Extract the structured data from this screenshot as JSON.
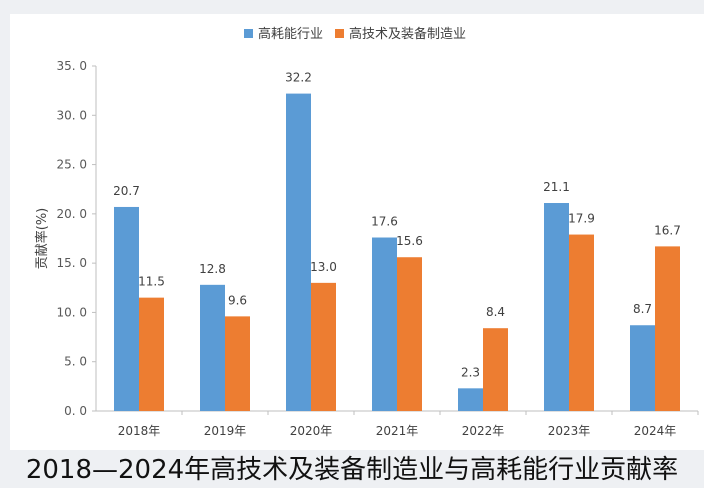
{
  "caption": "2018—2024年高技术及装备制造业与高耗能行业贡献率",
  "chart_data": {
    "type": "bar",
    "categories": [
      "2018年",
      "2019年",
      "2020年",
      "2021年",
      "2022年",
      "2023年",
      "2024年"
    ],
    "series": [
      {
        "name": "高耗能行业",
        "values": [
          20.7,
          12.8,
          32.2,
          17.6,
          2.3,
          21.1,
          8.7
        ],
        "color": "#5b9bd5"
      },
      {
        "name": "高技术及装备制造业",
        "values": [
          11.5,
          9.6,
          13.0,
          15.6,
          8.4,
          17.9,
          16.7
        ],
        "color": "#ed7d31"
      }
    ],
    "ylabel": "贡献率(%)",
    "ylim": [
      0,
      35
    ],
    "yticks": [
      "0. 0",
      "5. 0",
      "10. 0",
      "15. 0",
      "20. 0",
      "25. 0",
      "30. 0",
      "35. 0"
    ],
    "data_labels": [
      [
        "20.7",
        "12.8",
        "32.2",
        "17.6",
        "2.3",
        "21.1",
        "8.7"
      ],
      [
        "11.5",
        "9.6",
        "13.0",
        "15.6",
        "8.4",
        "17.9",
        "16.7"
      ]
    ],
    "legend": "top-center",
    "grid": false
  }
}
